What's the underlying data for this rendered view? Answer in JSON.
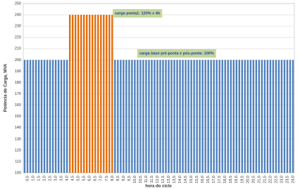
{
  "chart_data": {
    "type": "bar",
    "y_label": "Potência de Carga, MVA",
    "x_label": "hora do ciclo",
    "categories": [
      null,
      "0,5",
      null,
      "1,0",
      null,
      "1,5",
      null,
      "2,0",
      null,
      "2,5",
      null,
      "3,0",
      null,
      "3,5",
      null,
      "4,0",
      null,
      "4,5",
      null,
      "5,0",
      null,
      "5,5",
      null,
      "6,0",
      null,
      "6,5",
      null,
      "7,0",
      null,
      "7,5",
      null,
      "8,0",
      null,
      "8,5",
      null,
      "9,0",
      null,
      "9,5",
      null,
      "10,0",
      null,
      "10,5",
      null,
      "11,0",
      null,
      "11,5",
      null,
      "12,0",
      null,
      "12,5",
      null,
      "13,0",
      null,
      "13,5",
      null,
      "14,0",
      null,
      "14,5",
      null,
      "15,0",
      null,
      "15,5",
      null,
      "16,0",
      null,
      "16,5",
      null,
      "17,0",
      null,
      "17,5",
      null,
      "18,0",
      null,
      "18,5",
      null,
      "19,0",
      null,
      "19,5",
      null,
      "20,0",
      null,
      "20,5",
      null,
      "21,0",
      null,
      "21,5",
      null,
      "22,0",
      null,
      "22,5",
      null,
      "23,0",
      null,
      "23,5",
      null,
      "24,0"
    ],
    "series": [
      {
        "color": "#4f81bd",
        "values": [
          200,
          200,
          200,
          200,
          200,
          200,
          200,
          200,
          200,
          200,
          200,
          200,
          200,
          200,
          200,
          200,
          null,
          null,
          null,
          null,
          null,
          null,
          null,
          null,
          null,
          null,
          null,
          null,
          null,
          null,
          null,
          null,
          200,
          200,
          200,
          200,
          200,
          200,
          200,
          200,
          200,
          200,
          200,
          200,
          200,
          200,
          200,
          200,
          200,
          200,
          200,
          200,
          200,
          200,
          200,
          200,
          200,
          200,
          200,
          200,
          200,
          200,
          200,
          200,
          200,
          200,
          200,
          200,
          200,
          200,
          200,
          200,
          200,
          200,
          200,
          200,
          200,
          200,
          200,
          200,
          200,
          200,
          200,
          200,
          200,
          200,
          200,
          200,
          200,
          200,
          200,
          200,
          200,
          200,
          200,
          200
        ]
      },
      {
        "color": "#e46c0a",
        "values": [
          null,
          null,
          null,
          null,
          null,
          null,
          null,
          null,
          null,
          null,
          null,
          null,
          null,
          null,
          null,
          null,
          240,
          240,
          240,
          240,
          240,
          240,
          240,
          240,
          240,
          240,
          240,
          240,
          240,
          240,
          240,
          240,
          null,
          null,
          null,
          null,
          null,
          null,
          null,
          null,
          null,
          null,
          null,
          null,
          null,
          null,
          null,
          null,
          null,
          null,
          null,
          null,
          null,
          null,
          null,
          null,
          null,
          null,
          null,
          null,
          null,
          null,
          null,
          null,
          null,
          null,
          null,
          null,
          null,
          null,
          null,
          null,
          null,
          null,
          null,
          null,
          null,
          null,
          null,
          null,
          null,
          null,
          null,
          null,
          null,
          null,
          null,
          null,
          null,
          null,
          null,
          null,
          null,
          null,
          null,
          null
        ]
      }
    ],
    "ylim": [
      100,
      250
    ],
    "yticks": [
      100,
      110,
      120,
      130,
      140,
      150,
      160,
      170,
      180,
      190,
      200,
      210,
      220,
      230,
      240,
      250
    ],
    "grid": true,
    "annotations": [
      "carga ponta1: 120% x 4h",
      "carga base pré-ponta e pós-ponta: 100%"
    ]
  }
}
